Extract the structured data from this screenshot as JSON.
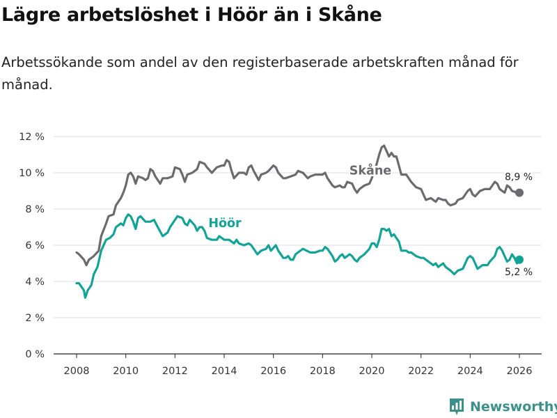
{
  "title": "Lägre arbetslöshet i Höör än i Skåne",
  "subtitle": "Arbetssökande som andel av den registerbaserade arbetskraften månad för månad.",
  "brand": {
    "name": "Newsworthy",
    "icon": "bar-chart-logo-icon",
    "color": "#3d8f8a"
  },
  "chart_data": {
    "type": "line",
    "x_unit": "year (decimal, monthly data)",
    "xlim": [
      2007.5,
      2026.6
    ],
    "ylim": [
      0,
      12
    ],
    "yticks": [
      0,
      2,
      4,
      6,
      8,
      10,
      12
    ],
    "ytick_labels": [
      "0 %",
      "2 %",
      "4 %",
      "6 %",
      "8 %",
      "10 %",
      "12 %"
    ],
    "xticks": [
      2008,
      2010,
      2012,
      2014,
      2016,
      2018,
      2020,
      2022,
      2024,
      2026
    ],
    "xtick_labels": [
      "2008",
      "2010",
      "2012",
      "2014",
      "2016",
      "2018",
      "2020",
      "2022",
      "2024",
      "2026"
    ],
    "grid": true,
    "series": [
      {
        "name": "Skåne",
        "color": "#6b6b6e",
        "end_label": "8,9 %",
        "points": [
          [
            2008.0,
            5.6
          ],
          [
            2008.1,
            5.5
          ],
          [
            2008.3,
            5.2
          ],
          [
            2008.4,
            4.9
          ],
          [
            2008.5,
            5.2
          ],
          [
            2008.7,
            5.4
          ],
          [
            2008.9,
            5.7
          ],
          [
            2009.0,
            6.5
          ],
          [
            2009.2,
            7.2
          ],
          [
            2009.3,
            7.6
          ],
          [
            2009.5,
            7.7
          ],
          [
            2009.6,
            8.2
          ],
          [
            2009.8,
            8.6
          ],
          [
            2009.9,
            8.9
          ],
          [
            2010.0,
            9.3
          ],
          [
            2010.1,
            9.9
          ],
          [
            2010.2,
            10.0
          ],
          [
            2010.3,
            9.8
          ],
          [
            2010.4,
            9.4
          ],
          [
            2010.5,
            9.8
          ],
          [
            2010.7,
            9.7
          ],
          [
            2010.8,
            9.6
          ],
          [
            2010.9,
            9.7
          ],
          [
            2011.0,
            10.2
          ],
          [
            2011.1,
            10.1
          ],
          [
            2011.2,
            9.8
          ],
          [
            2011.4,
            9.4
          ],
          [
            2011.5,
            9.7
          ],
          [
            2011.7,
            9.7
          ],
          [
            2011.9,
            9.8
          ],
          [
            2012.0,
            10.3
          ],
          [
            2012.2,
            10.2
          ],
          [
            2012.3,
            9.9
          ],
          [
            2012.4,
            9.5
          ],
          [
            2012.5,
            9.9
          ],
          [
            2012.7,
            10.0
          ],
          [
            2012.9,
            10.2
          ],
          [
            2013.0,
            10.6
          ],
          [
            2013.2,
            10.5
          ],
          [
            2013.3,
            10.3
          ],
          [
            2013.5,
            10.0
          ],
          [
            2013.7,
            10.3
          ],
          [
            2013.9,
            10.4
          ],
          [
            2014.0,
            10.4
          ],
          [
            2014.1,
            10.7
          ],
          [
            2014.2,
            10.6
          ],
          [
            2014.3,
            10.1
          ],
          [
            2014.4,
            9.7
          ],
          [
            2014.6,
            10.0
          ],
          [
            2014.8,
            10.0
          ],
          [
            2014.9,
            9.9
          ],
          [
            2015.0,
            10.3
          ],
          [
            2015.1,
            10.4
          ],
          [
            2015.2,
            10.1
          ],
          [
            2015.4,
            9.6
          ],
          [
            2015.5,
            9.9
          ],
          [
            2015.7,
            10.0
          ],
          [
            2015.8,
            10.1
          ],
          [
            2016.0,
            10.4
          ],
          [
            2016.1,
            10.3
          ],
          [
            2016.2,
            10.0
          ],
          [
            2016.4,
            9.7
          ],
          [
            2016.5,
            9.7
          ],
          [
            2016.7,
            9.8
          ],
          [
            2016.9,
            9.9
          ],
          [
            2017.0,
            10.1
          ],
          [
            2017.2,
            10.0
          ],
          [
            2017.4,
            9.7
          ],
          [
            2017.5,
            9.8
          ],
          [
            2017.7,
            9.9
          ],
          [
            2017.9,
            9.9
          ],
          [
            2018.0,
            9.9
          ],
          [
            2018.1,
            10.0
          ],
          [
            2018.2,
            9.7
          ],
          [
            2018.4,
            9.3
          ],
          [
            2018.5,
            9.2
          ],
          [
            2018.7,
            9.3
          ],
          [
            2018.8,
            9.2
          ],
          [
            2018.9,
            9.2
          ],
          [
            2019.0,
            9.5
          ],
          [
            2019.2,
            9.4
          ],
          [
            2019.3,
            9.1
          ],
          [
            2019.4,
            8.9
          ],
          [
            2019.5,
            9.1
          ],
          [
            2019.7,
            9.3
          ],
          [
            2019.9,
            9.4
          ],
          [
            2020.0,
            9.7
          ],
          [
            2020.1,
            10.1
          ],
          [
            2020.2,
            10.5
          ],
          [
            2020.3,
            11.0
          ],
          [
            2020.4,
            11.4
          ],
          [
            2020.5,
            11.5
          ],
          [
            2020.6,
            11.2
          ],
          [
            2020.7,
            10.9
          ],
          [
            2020.8,
            11.1
          ],
          [
            2020.9,
            10.9
          ],
          [
            2021.0,
            10.9
          ],
          [
            2021.1,
            10.4
          ],
          [
            2021.2,
            9.9
          ],
          [
            2021.4,
            9.9
          ],
          [
            2021.5,
            9.7
          ],
          [
            2021.6,
            9.5
          ],
          [
            2021.8,
            9.2
          ],
          [
            2022.0,
            9.1
          ],
          [
            2022.1,
            8.8
          ],
          [
            2022.2,
            8.5
          ],
          [
            2022.4,
            8.6
          ],
          [
            2022.6,
            8.4
          ],
          [
            2022.7,
            8.6
          ],
          [
            2022.9,
            8.5
          ],
          [
            2023.0,
            8.5
          ],
          [
            2023.1,
            8.3
          ],
          [
            2023.2,
            8.2
          ],
          [
            2023.4,
            8.3
          ],
          [
            2023.5,
            8.5
          ],
          [
            2023.7,
            8.6
          ],
          [
            2023.9,
            9.0
          ],
          [
            2024.0,
            9.1
          ],
          [
            2024.1,
            8.8
          ],
          [
            2024.2,
            8.7
          ],
          [
            2024.4,
            9.0
          ],
          [
            2024.6,
            9.1
          ],
          [
            2024.8,
            9.1
          ],
          [
            2025.0,
            9.5
          ],
          [
            2025.1,
            9.4
          ],
          [
            2025.2,
            9.1
          ],
          [
            2025.4,
            8.9
          ],
          [
            2025.5,
            9.3
          ],
          [
            2025.6,
            9.2
          ],
          [
            2025.7,
            9.0
          ],
          [
            2025.9,
            8.9
          ],
          [
            2026.0,
            8.9
          ]
        ]
      },
      {
        "name": "Höör",
        "color": "#12a396",
        "end_label": "5,2 %",
        "points": [
          [
            2008.0,
            3.9
          ],
          [
            2008.1,
            3.9
          ],
          [
            2008.3,
            3.5
          ],
          [
            2008.35,
            3.1
          ],
          [
            2008.45,
            3.5
          ],
          [
            2008.6,
            3.8
          ],
          [
            2008.7,
            4.4
          ],
          [
            2008.85,
            4.8
          ],
          [
            2009.0,
            5.7
          ],
          [
            2009.2,
            6.3
          ],
          [
            2009.35,
            6.4
          ],
          [
            2009.5,
            6.6
          ],
          [
            2009.6,
            7.0
          ],
          [
            2009.8,
            7.2
          ],
          [
            2009.9,
            7.1
          ],
          [
            2010.0,
            7.5
          ],
          [
            2010.1,
            7.7
          ],
          [
            2010.2,
            7.6
          ],
          [
            2010.3,
            7.3
          ],
          [
            2010.4,
            6.9
          ],
          [
            2010.5,
            7.5
          ],
          [
            2010.6,
            7.6
          ],
          [
            2010.8,
            7.3
          ],
          [
            2010.9,
            7.3
          ],
          [
            2011.0,
            7.3
          ],
          [
            2011.15,
            7.4
          ],
          [
            2011.3,
            7.0
          ],
          [
            2011.5,
            6.5
          ],
          [
            2011.7,
            6.7
          ],
          [
            2011.8,
            7.0
          ],
          [
            2012.0,
            7.4
          ],
          [
            2012.1,
            7.6
          ],
          [
            2012.3,
            7.5
          ],
          [
            2012.4,
            7.2
          ],
          [
            2012.5,
            7.1
          ],
          [
            2012.6,
            7.4
          ],
          [
            2012.8,
            7.1
          ],
          [
            2012.9,
            6.8
          ],
          [
            2013.0,
            7.0
          ],
          [
            2013.1,
            7.0
          ],
          [
            2013.2,
            6.8
          ],
          [
            2013.3,
            6.4
          ],
          [
            2013.5,
            6.3
          ],
          [
            2013.7,
            6.3
          ],
          [
            2013.8,
            6.5
          ],
          [
            2014.0,
            6.3
          ],
          [
            2014.2,
            6.3
          ],
          [
            2014.4,
            6.1
          ],
          [
            2014.5,
            6.3
          ],
          [
            2014.6,
            6.1
          ],
          [
            2014.8,
            6.0
          ],
          [
            2015.0,
            6.1
          ],
          [
            2015.1,
            6.0
          ],
          [
            2015.2,
            5.8
          ],
          [
            2015.35,
            5.5
          ],
          [
            2015.5,
            5.7
          ],
          [
            2015.7,
            5.8
          ],
          [
            2015.8,
            6.0
          ],
          [
            2015.9,
            5.7
          ],
          [
            2016.1,
            6.0
          ],
          [
            2016.2,
            5.7
          ],
          [
            2016.4,
            5.3
          ],
          [
            2016.5,
            5.3
          ],
          [
            2016.6,
            5.4
          ],
          [
            2016.7,
            5.2
          ],
          [
            2016.8,
            5.2
          ],
          [
            2016.9,
            5.5
          ],
          [
            2017.0,
            5.6
          ],
          [
            2017.2,
            5.8
          ],
          [
            2017.35,
            5.7
          ],
          [
            2017.5,
            5.6
          ],
          [
            2017.7,
            5.6
          ],
          [
            2017.9,
            5.7
          ],
          [
            2018.0,
            5.7
          ],
          [
            2018.1,
            5.9
          ],
          [
            2018.2,
            5.8
          ],
          [
            2018.3,
            5.6
          ],
          [
            2018.4,
            5.4
          ],
          [
            2018.5,
            5.1
          ],
          [
            2018.6,
            5.2
          ],
          [
            2018.7,
            5.4
          ],
          [
            2018.8,
            5.5
          ],
          [
            2018.9,
            5.3
          ],
          [
            2019.0,
            5.4
          ],
          [
            2019.1,
            5.5
          ],
          [
            2019.2,
            5.4
          ],
          [
            2019.3,
            5.2
          ],
          [
            2019.4,
            5.1
          ],
          [
            2019.5,
            5.3
          ],
          [
            2019.7,
            5.5
          ],
          [
            2019.9,
            5.8
          ],
          [
            2020.0,
            6.1
          ],
          [
            2020.1,
            6.1
          ],
          [
            2020.2,
            5.9
          ],
          [
            2020.3,
            6.3
          ],
          [
            2020.4,
            6.9
          ],
          [
            2020.5,
            6.9
          ],
          [
            2020.6,
            6.8
          ],
          [
            2020.7,
            6.9
          ],
          [
            2020.8,
            6.5
          ],
          [
            2020.9,
            6.6
          ],
          [
            2021.0,
            6.4
          ],
          [
            2021.1,
            6.2
          ],
          [
            2021.2,
            5.7
          ],
          [
            2021.4,
            5.7
          ],
          [
            2021.5,
            5.6
          ],
          [
            2021.6,
            5.6
          ],
          [
            2021.8,
            5.4
          ],
          [
            2022.0,
            5.3
          ],
          [
            2022.1,
            5.3
          ],
          [
            2022.3,
            5.1
          ],
          [
            2022.4,
            5.0
          ],
          [
            2022.5,
            4.9
          ],
          [
            2022.6,
            5.0
          ],
          [
            2022.7,
            4.8
          ],
          [
            2022.8,
            4.9
          ],
          [
            2022.9,
            5.0
          ],
          [
            2023.0,
            4.8
          ],
          [
            2023.1,
            4.7
          ],
          [
            2023.2,
            4.6
          ],
          [
            2023.35,
            4.4
          ],
          [
            2023.5,
            4.6
          ],
          [
            2023.7,
            4.7
          ],
          [
            2023.8,
            5.0
          ],
          [
            2023.9,
            5.3
          ],
          [
            2024.0,
            5.4
          ],
          [
            2024.1,
            5.3
          ],
          [
            2024.2,
            5.0
          ],
          [
            2024.3,
            4.7
          ],
          [
            2024.5,
            4.9
          ],
          [
            2024.7,
            4.9
          ],
          [
            2024.8,
            5.1
          ],
          [
            2025.0,
            5.4
          ],
          [
            2025.1,
            5.8
          ],
          [
            2025.2,
            5.9
          ],
          [
            2025.3,
            5.7
          ],
          [
            2025.4,
            5.4
          ],
          [
            2025.5,
            5.1
          ],
          [
            2025.6,
            5.2
          ],
          [
            2025.7,
            5.5
          ],
          [
            2025.8,
            5.3
          ],
          [
            2025.9,
            5.0
          ],
          [
            2026.0,
            5.2
          ]
        ]
      }
    ]
  }
}
